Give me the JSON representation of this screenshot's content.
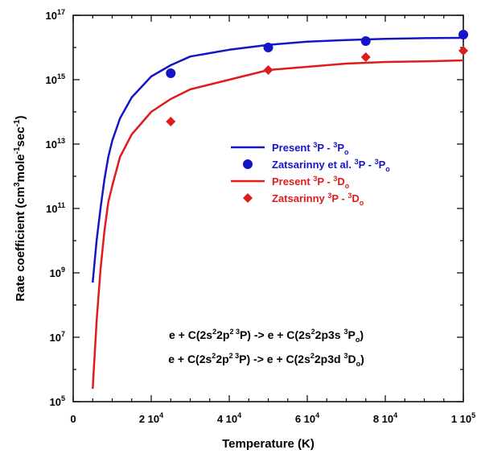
{
  "chart_data": {
    "type": "line",
    "xlabel": "Temperature (K)",
    "ylabel": {
      "pre": "Rate coefficient (cm",
      "sup1": "3",
      "mid1": "mole",
      "sup2": "-1",
      "mid2": "sec",
      "sup3": "-1",
      "post": ")"
    },
    "xlim": [
      0,
      100000
    ],
    "ylim_log10": [
      5,
      17
    ],
    "y_scale": "log",
    "grid": false,
    "x_ticks": [
      {
        "value": 0,
        "base": "0",
        "exp": ""
      },
      {
        "value": 20000,
        "base": "2 10",
        "exp": "4"
      },
      {
        "value": 40000,
        "base": "4 10",
        "exp": "4"
      },
      {
        "value": 60000,
        "base": "6 10",
        "exp": "4"
      },
      {
        "value": 80000,
        "base": "8 10",
        "exp": "4"
      },
      {
        "value": 100000,
        "base": "1 10",
        "exp": "5"
      }
    ],
    "y_ticks": [
      {
        "log": 5,
        "base": "10",
        "exp": "5"
      },
      {
        "log": 7,
        "base": "10",
        "exp": "7"
      },
      {
        "log": 9,
        "base": "10",
        "exp": "9"
      },
      {
        "log": 11,
        "base": "10",
        "exp": "11"
      },
      {
        "log": 13,
        "base": "10",
        "exp": "13"
      },
      {
        "log": 15,
        "base": "10",
        "exp": "15"
      },
      {
        "log": 17,
        "base": "10",
        "exp": "17"
      }
    ],
    "colors": {
      "blue": "#1515c8",
      "red": "#e01b1b",
      "axis": "#000000"
    },
    "series": [
      {
        "kind": "line",
        "color": "blue",
        "legend": {
          "pre": "Present ",
          "sup1": "3",
          "mid": "P - ",
          "sup2": "3",
          "core": "P",
          "sub": "o"
        },
        "x": [
          5000,
          6000,
          7000,
          8000,
          9000,
          10000,
          12000,
          15000,
          20000,
          25000,
          30000,
          40000,
          50000,
          60000,
          70000,
          80000,
          90000,
          100000
        ],
        "y_log10": [
          8.7,
          10.0,
          11.0,
          11.9,
          12.6,
          13.1,
          13.8,
          14.45,
          15.1,
          15.45,
          15.72,
          15.93,
          16.08,
          16.18,
          16.23,
          16.27,
          16.29,
          16.3
        ]
      },
      {
        "kind": "marker",
        "shape": "circle",
        "color": "blue",
        "legend": {
          "pre": "Zatsarinny et al. ",
          "sup1": "3",
          "mid": "P - ",
          "sup2": "3",
          "core": "P",
          "sub": "o"
        },
        "x": [
          25000,
          50000,
          75000,
          100000
        ],
        "y_log10": [
          15.2,
          16.0,
          16.2,
          16.4
        ]
      },
      {
        "kind": "line",
        "color": "red",
        "legend": {
          "pre": "Present ",
          "sup1": "3",
          "mid": "P - ",
          "sup2": "3",
          "core": "D",
          "sub": "o"
        },
        "x": [
          5000,
          6000,
          7000,
          8000,
          9000,
          10000,
          12000,
          15000,
          20000,
          25000,
          30000,
          40000,
          50000,
          60000,
          70000,
          80000,
          90000,
          100000
        ],
        "y_log10": [
          5.4,
          7.5,
          9.1,
          10.3,
          11.2,
          11.7,
          12.6,
          13.3,
          14.0,
          14.4,
          14.7,
          15.0,
          15.3,
          15.4,
          15.5,
          15.55,
          15.57,
          15.6
        ]
      },
      {
        "kind": "marker",
        "shape": "diamond",
        "color": "red",
        "legend": {
          "pre": "Zatsarinny ",
          "sup1": "3",
          "mid": "P - ",
          "sup2": "3",
          "core": "D",
          "sub": "o"
        },
        "x": [
          25000,
          50000,
          75000,
          100000
        ],
        "y_log10": [
          13.7,
          15.3,
          15.7,
          15.9
        ]
      }
    ],
    "annotations": [
      {
        "p1": "e + C(2s",
        "s1": "2",
        "p2": "2p",
        "s2": "2 3",
        "p3": "P) -> e + C(2s",
        "s3": "2",
        "p4": "2p3s ",
        "s4": "3",
        "p5": "P",
        "sub": "o",
        "p6": ")"
      },
      {
        "p1": "e + C(2s",
        "s1": "2",
        "p2": "2p",
        "s2": "2 3",
        "p3": "P) -> e + C(2s",
        "s3": "2",
        "p4": "2p3d ",
        "s4": "3",
        "p5": "D",
        "sub": "o",
        "p6": ")"
      }
    ]
  }
}
